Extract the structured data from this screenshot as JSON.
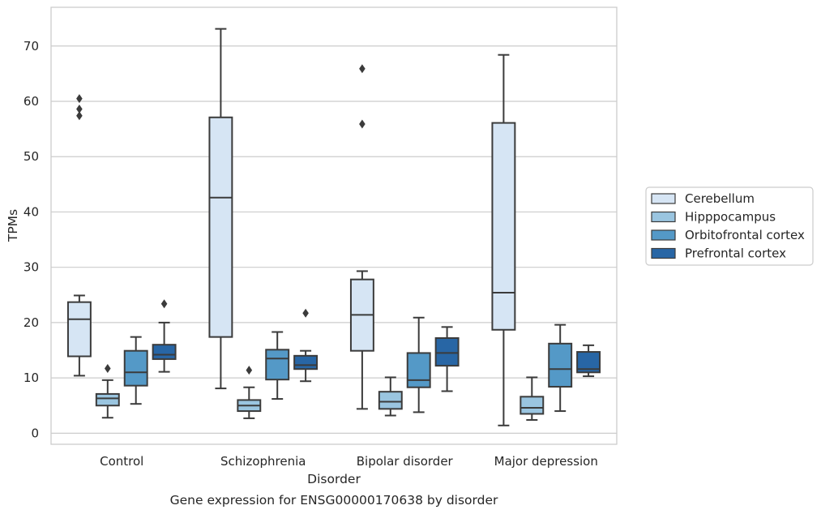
{
  "chart_data": {
    "type": "boxplot",
    "title": "",
    "caption": "Gene expression for ENSG00000170638 by disorder",
    "xlabel": "Disorder",
    "ylabel": "TPMs",
    "ylim": [
      -2,
      77
    ],
    "yticks": [
      0,
      10,
      20,
      30,
      40,
      50,
      60,
      70
    ],
    "grid": "horizontal",
    "legend_position": "right",
    "categories": [
      "Control",
      "Schizophrenia",
      "Bipolar disorder",
      "Major depression"
    ],
    "series": [
      {
        "name": "Cerebellum",
        "color": "#d6e5f4",
        "boxes": [
          {
            "whisker_low": 10.4,
            "q1": 13.9,
            "median": 20.6,
            "q3": 23.7,
            "whisker_high": 24.9,
            "outliers": [
              57.4,
              58.6,
              60.5
            ]
          },
          {
            "whisker_low": 8.1,
            "q1": 17.4,
            "median": 42.6,
            "q3": 57.1,
            "whisker_high": 73.1,
            "outliers": []
          },
          {
            "whisker_low": 4.4,
            "q1": 14.9,
            "median": 21.4,
            "q3": 27.8,
            "whisker_high": 29.3,
            "outliers": [
              55.9,
              65.9
            ]
          },
          {
            "whisker_low": 1.4,
            "q1": 18.7,
            "median": 25.4,
            "q3": 56.1,
            "whisker_high": 68.4,
            "outliers": []
          }
        ]
      },
      {
        "name": "Hipppocampus",
        "color": "#9ac5e0",
        "boxes": [
          {
            "whisker_low": 2.8,
            "q1": 5.0,
            "median": 6.3,
            "q3": 7.1,
            "whisker_high": 9.6,
            "outliers": [
              11.7
            ]
          },
          {
            "whisker_low": 2.7,
            "q1": 4.0,
            "median": 5.0,
            "q3": 6.0,
            "whisker_high": 8.3,
            "outliers": [
              11.4
            ]
          },
          {
            "whisker_low": 3.2,
            "q1": 4.4,
            "median": 5.7,
            "q3": 7.5,
            "whisker_high": 10.1,
            "outliers": []
          },
          {
            "whisker_low": 2.4,
            "q1": 3.5,
            "median": 4.6,
            "q3": 6.6,
            "whisker_high": 10.1,
            "outliers": []
          }
        ]
      },
      {
        "name": "Orbitofrontal cortex",
        "color": "#5499c7",
        "boxes": [
          {
            "whisker_low": 5.3,
            "q1": 8.6,
            "median": 11.0,
            "q3": 14.9,
            "whisker_high": 17.4,
            "outliers": []
          },
          {
            "whisker_low": 6.2,
            "q1": 9.7,
            "median": 13.5,
            "q3": 15.1,
            "whisker_high": 18.3,
            "outliers": []
          },
          {
            "whisker_low": 3.8,
            "q1": 8.3,
            "median": 9.6,
            "q3": 14.5,
            "whisker_high": 20.9,
            "outliers": []
          },
          {
            "whisker_low": 4.0,
            "q1": 8.4,
            "median": 11.6,
            "q3": 16.2,
            "whisker_high": 19.6,
            "outliers": []
          }
        ]
      },
      {
        "name": "Prefrontal cortex",
        "color": "#2866a5",
        "boxes": [
          {
            "whisker_low": 11.1,
            "q1": 13.4,
            "median": 14.2,
            "q3": 16.0,
            "whisker_high": 20.0,
            "outliers": [
              23.4
            ]
          },
          {
            "whisker_low": 9.4,
            "q1": 11.6,
            "median": 12.3,
            "q3": 14.0,
            "whisker_high": 14.9,
            "outliers": [
              21.7
            ]
          },
          {
            "whisker_low": 7.6,
            "q1": 12.2,
            "median": 14.5,
            "q3": 17.2,
            "whisker_high": 19.2,
            "outliers": []
          },
          {
            "whisker_low": 10.3,
            "q1": 11.0,
            "median": 11.6,
            "q3": 14.7,
            "whisker_high": 15.9,
            "outliers": []
          }
        ]
      }
    ]
  }
}
